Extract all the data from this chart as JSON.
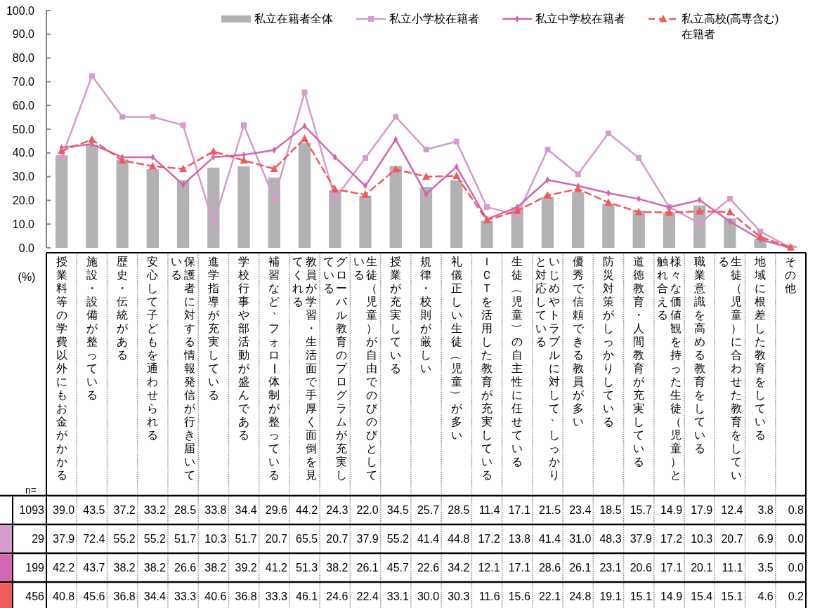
{
  "chart_data": {
    "type": "bar",
    "categories": [
      "授業料等の学費以外にもお金がかかる",
      "施設・設備が整っている",
      "歴史・伝統がある",
      "安心して子どもを通わせられる",
      "保護者に対する情報発信が行き届いている",
      "進学指導が充実している",
      "学校行事や部活動が盛んである",
      "補習など、フォロー体制が整っている",
      "教員が学習・生活面で手厚く面倒を見てくれる",
      "グローバル教育のプログラムが充実している",
      "生徒（児童）が自由でのびのびとしている",
      "授業が充実している",
      "規律・校則が厳しい",
      "礼儀正しい生徒（児童）が多い",
      "ＩＣＴを活用した教育が充実している",
      "生徒（児童）の自主性に任せている",
      "いじめやトラブルに対して、しっかりと対応している",
      "優秀で信頼できる教員が多い",
      "防災対策がしっかりしている",
      "道徳教育・人間教育が充実している",
      "様々な価値観を持った生徒（児童）と触れ合える",
      "職業意識を高める教育をしている",
      "生徒（児童）に合わせた教育をしている",
      "地域に根差した教育をしている",
      "その他"
    ],
    "series": [
      {
        "name": "私立在籍者全体",
        "color": "#b2b2b4",
        "values": [
          39.0,
          43.5,
          37.2,
          33.2,
          28.5,
          33.8,
          34.4,
          29.6,
          44.2,
          24.3,
          22.0,
          34.5,
          25.7,
          28.5,
          11.4,
          17.1,
          21.5,
          23.4,
          18.5,
          15.7,
          14.9,
          17.9,
          12.4,
          3.8,
          0.8
        ],
        "value_labels": [
          "39.0",
          "43.5",
          "37.2",
          "33.2",
          "28.5",
          "33.8",
          "34.4",
          "29.6",
          "44.2",
          "24.3",
          "22.0",
          "34.5",
          "25.7",
          "28.5",
          "11.4",
          "17.1",
          "21.5",
          "23.4",
          "18.5",
          "15.7",
          "14.9",
          "17.9",
          "12.4",
          "3.8",
          "0.8"
        ]
      },
      {
        "name": "私立小学校在籍者",
        "type": "line",
        "color": "#d59bcb",
        "marker": "square",
        "line_style": "solid",
        "values": [
          37.9,
          72.4,
          55.2,
          55.2,
          51.7,
          10.3,
          51.7,
          20.7,
          65.5,
          20.7,
          37.9,
          55.2,
          41.4,
          44.8,
          17.2,
          13.8,
          41.4,
          31.0,
          48.3,
          37.9,
          17.2,
          10.3,
          20.7,
          6.9,
          0.0
        ],
        "value_labels": [
          "37.9",
          "72.4",
          "55.2",
          "55.2",
          "51.7",
          "10.3",
          "51.7",
          "20.7",
          "65.5",
          "20.7",
          "37.9",
          "55.2",
          "41.4",
          "44.8",
          "17.2",
          "13.8",
          "41.4",
          "31.0",
          "48.3",
          "37.9",
          "17.2",
          "10.3",
          "20.7",
          "6.9",
          "0.0"
        ]
      },
      {
        "name": "私立中学校在籍者",
        "type": "line",
        "color": "#d466b2",
        "marker": "diamond",
        "line_style": "solid",
        "values": [
          42.2,
          43.7,
          38.2,
          38.2,
          26.6,
          38.2,
          39.2,
          41.2,
          51.3,
          38.2,
          26.1,
          45.7,
          22.6,
          34.2,
          12.1,
          17.1,
          28.6,
          26.1,
          23.1,
          20.6,
          17.1,
          20.1,
          11.1,
          3.5,
          0.0
        ],
        "value_labels": [
          "42.2",
          "43.7",
          "38.2",
          "38.2",
          "26.6",
          "38.2",
          "39.2",
          "41.2",
          "51.3",
          "38.2",
          "26.1",
          "45.7",
          "22.6",
          "34.2",
          "12.1",
          "17.1",
          "28.6",
          "26.1",
          "23.1",
          "20.6",
          "17.1",
          "20.1",
          "11.1",
          "3.5",
          "0.0"
        ]
      },
      {
        "name": "私立高校(高専含む)在籍者",
        "type": "line",
        "color": "#f05a5c",
        "marker": "triangle",
        "line_style": "dashed",
        "values": [
          40.8,
          45.6,
          36.8,
          34.4,
          33.3,
          40.6,
          36.8,
          33.3,
          46.1,
          24.6,
          22.4,
          33.1,
          30.0,
          30.3,
          11.6,
          15.6,
          22.1,
          24.8,
          19.1,
          15.1,
          14.9,
          15.4,
          15.1,
          4.6,
          0.2
        ],
        "value_labels": [
          "40.8",
          "45.6",
          "36.8",
          "34.4",
          "33.3",
          "40.6",
          "36.8",
          "33.3",
          "46.1",
          "24.6",
          "22.4",
          "33.1",
          "30.0",
          "30.3",
          "11.6",
          "15.6",
          "22.1",
          "24.8",
          "19.1",
          "15.1",
          "14.9",
          "15.4",
          "15.1",
          "4.6",
          "0.2"
        ]
      }
    ],
    "ylim": [
      0,
      100
    ],
    "yticks": [
      {
        "value": 0,
        "label": "0.0"
      },
      {
        "value": 10,
        "label": "10.0"
      },
      {
        "value": 20,
        "label": "20.0"
      },
      {
        "value": 30,
        "label": "30.0"
      },
      {
        "value": 40,
        "label": "40.0"
      },
      {
        "value": 50,
        "label": "50.0"
      },
      {
        "value": 60,
        "label": "60.0"
      },
      {
        "value": 70,
        "label": "70.0"
      },
      {
        "value": 80,
        "label": "80.0"
      },
      {
        "value": 90,
        "label": "90.0"
      },
      {
        "value": 100,
        "label": "100.0"
      }
    ],
    "legend": "top",
    "annotations": [
      "(%)",
      "n=",
      "1093",
      "29",
      "199",
      "456"
    ]
  }
}
